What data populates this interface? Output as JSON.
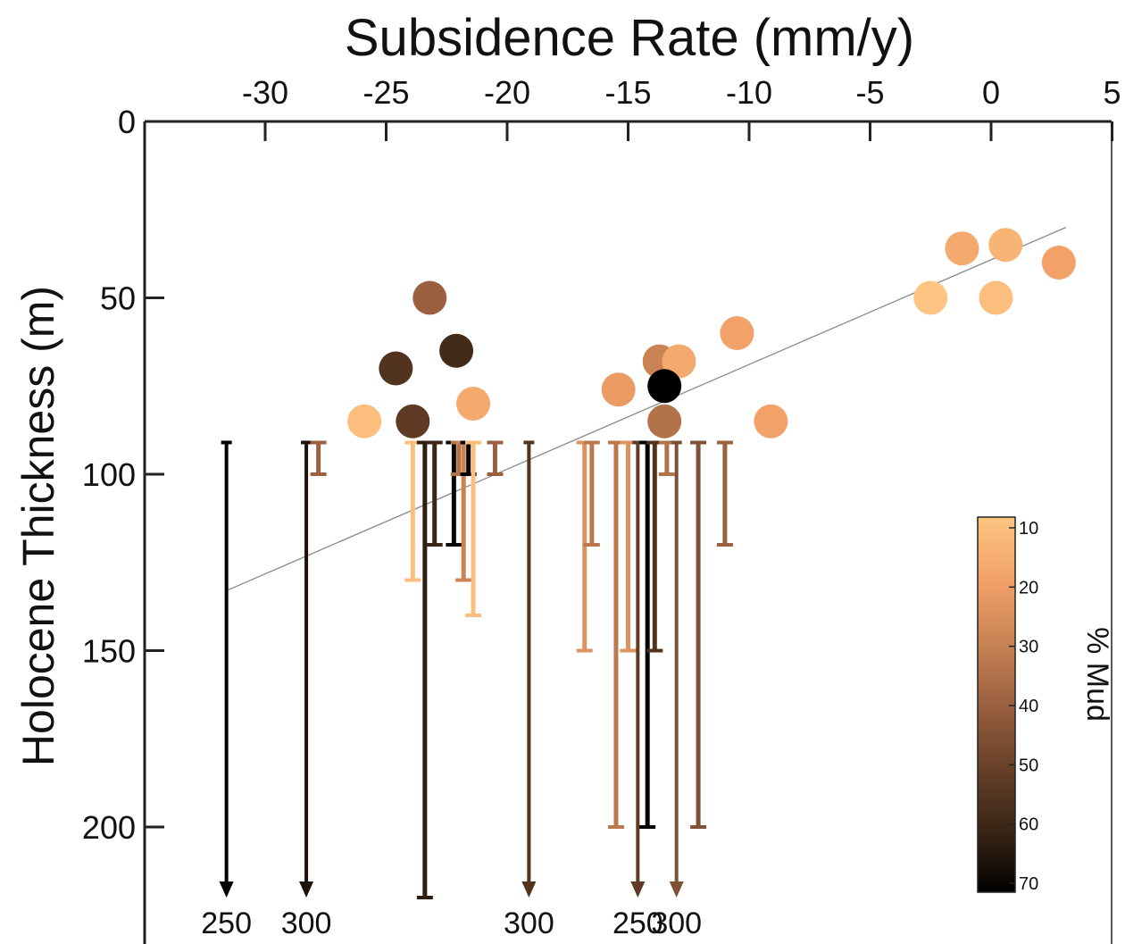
{
  "chart_data": {
    "type": "scatter",
    "title": "Subsidence Rate (mm/y)",
    "xlabel": "",
    "ylabel": "Holocene Thickness (m)",
    "xlim": [
      -35,
      5
    ],
    "ylim": [
      0,
      225
    ],
    "y_inverted": true,
    "x_axis_position": "top",
    "x_ticks": [
      "-30",
      "-25",
      "-20",
      "-15",
      "-10",
      "-5",
      "0",
      "5"
    ],
    "y_ticks": [
      "0",
      "50",
      "100",
      "150",
      "200"
    ],
    "trend_line": {
      "x": [
        -31.6,
        3.1
      ],
      "y": [
        133,
        30
      ]
    },
    "colorbar": {
      "label": "% Mud",
      "min": 10,
      "max": 70,
      "ticks": [
        "10",
        "20",
        "30",
        "40",
        "50",
        "60",
        "70"
      ],
      "colors": [
        "#fdc581",
        "#f2a268",
        "#c98354",
        "#9a6040",
        "#684129",
        "#3a2516",
        "#000000"
      ]
    },
    "points": [
      {
        "x": -23.2,
        "y": 50,
        "mud": 40
      },
      {
        "x": -24.6,
        "y": 70,
        "mud": 55
      },
      {
        "x": -22.1,
        "y": 65,
        "mud": 58
      },
      {
        "x": -23.9,
        "y": 85,
        "mud": 52
      },
      {
        "x": -25.9,
        "y": 85,
        "mud": 12
      },
      {
        "x": -21.4,
        "y": 80,
        "mud": 18
      },
      {
        "x": -15.4,
        "y": 76,
        "mud": 22
      },
      {
        "x": -13.7,
        "y": 68,
        "mud": 30
      },
      {
        "x": -12.9,
        "y": 68,
        "mud": 18
      },
      {
        "x": -13.5,
        "y": 75,
        "mud": 70
      },
      {
        "x": -13.5,
        "y": 85,
        "mud": 35
      },
      {
        "x": -10.5,
        "y": 60,
        "mud": 20
      },
      {
        "x": -9.1,
        "y": 85,
        "mud": 20
      },
      {
        "x": -2.5,
        "y": 50,
        "mud": 10
      },
      {
        "x": -1.2,
        "y": 36,
        "mud": 18
      },
      {
        "x": 0.6,
        "y": 35,
        "mud": 15
      },
      {
        "x": 0.2,
        "y": 50,
        "mud": 12
      },
      {
        "x": 2.8,
        "y": 40,
        "mud": 20
      }
    ],
    "bars": [
      {
        "x": -31.6,
        "y1": 91,
        "y2": 220,
        "mud": 70,
        "arrow": true,
        "label": "250"
      },
      {
        "x": -28.3,
        "y1": 91,
        "y2": 220,
        "mud": 65,
        "arrow": true,
        "label": "300"
      },
      {
        "x": -27.8,
        "y1": 91,
        "y2": 100,
        "mud": 40,
        "arrow": false,
        "label": ""
      },
      {
        "x": -23.9,
        "y1": 91,
        "y2": 130,
        "mud": 12,
        "arrow": false,
        "label": ""
      },
      {
        "x": -23.4,
        "y1": 91,
        "y2": 220,
        "mud": 62,
        "arrow": false,
        "label": ""
      },
      {
        "x": -23.0,
        "y1": 91,
        "y2": 120,
        "mud": 60,
        "arrow": false,
        "label": ""
      },
      {
        "x": -22.2,
        "y1": 91,
        "y2": 120,
        "mud": 68,
        "arrow": false,
        "label": ""
      },
      {
        "x": -22.0,
        "y1": 91,
        "y2": 100,
        "mud": 35,
        "arrow": false,
        "label": ""
      },
      {
        "x": -21.8,
        "y1": 91,
        "y2": 130,
        "mud": 30,
        "arrow": false,
        "label": ""
      },
      {
        "x": -21.6,
        "y1": 91,
        "y2": 100,
        "mud": 70,
        "arrow": false,
        "label": ""
      },
      {
        "x": -21.4,
        "y1": 91,
        "y2": 140,
        "mud": 12,
        "arrow": false,
        "label": ""
      },
      {
        "x": -20.5,
        "y1": 91,
        "y2": 100,
        "mud": 40,
        "arrow": false,
        "label": ""
      },
      {
        "x": -19.1,
        "y1": 91,
        "y2": 220,
        "mud": 55,
        "arrow": true,
        "label": "300"
      },
      {
        "x": -16.8,
        "y1": 91,
        "y2": 150,
        "mud": 25,
        "arrow": false,
        "label": ""
      },
      {
        "x": -16.5,
        "y1": 91,
        "y2": 120,
        "mud": 33,
        "arrow": false,
        "label": ""
      },
      {
        "x": -15.5,
        "y1": 91,
        "y2": 200,
        "mud": 33,
        "arrow": false,
        "label": ""
      },
      {
        "x": -15.0,
        "y1": 91,
        "y2": 150,
        "mud": 25,
        "arrow": false,
        "label": ""
      },
      {
        "x": -14.6,
        "y1": 91,
        "y2": 220,
        "mud": 52,
        "arrow": true,
        "label": "250"
      },
      {
        "x": -14.2,
        "y1": 91,
        "y2": 200,
        "mud": 70,
        "arrow": false,
        "label": ""
      },
      {
        "x": -13.9,
        "y1": 91,
        "y2": 150,
        "mud": 55,
        "arrow": false,
        "label": ""
      },
      {
        "x": -13.4,
        "y1": 91,
        "y2": 100,
        "mud": 35,
        "arrow": false,
        "label": ""
      },
      {
        "x": -13.0,
        "y1": 91,
        "y2": 220,
        "mud": 45,
        "arrow": true,
        "label": "300"
      },
      {
        "x": -12.1,
        "y1": 91,
        "y2": 200,
        "mud": 45,
        "arrow": false,
        "label": ""
      },
      {
        "x": -11.0,
        "y1": 91,
        "y2": 120,
        "mud": 40,
        "arrow": false,
        "label": ""
      }
    ]
  }
}
